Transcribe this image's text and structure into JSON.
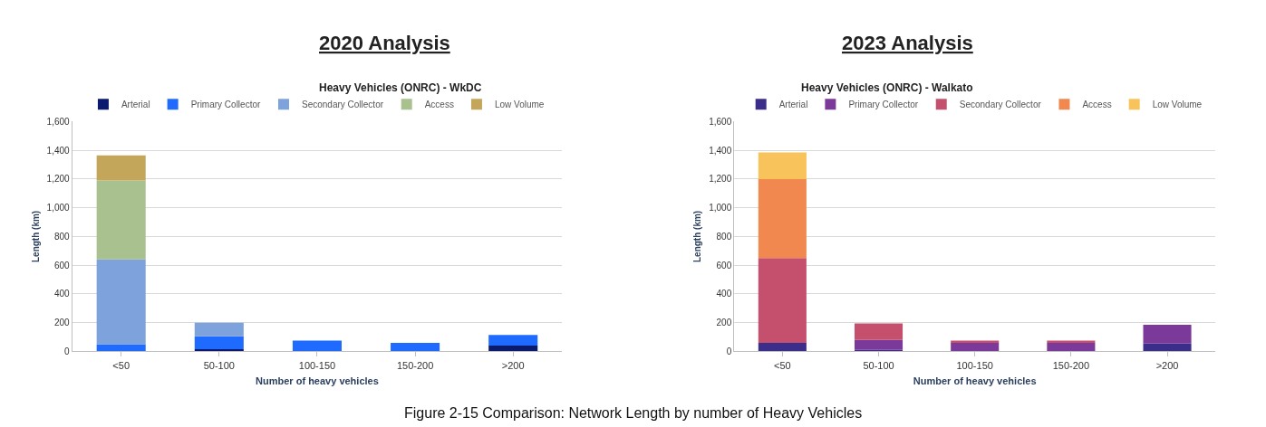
{
  "chart_data": [
    {
      "type": "bar",
      "title": "2020 Analysis",
      "subtitle": "Heavy Vehicles (ONRC) - WkDC",
      "xlabel": "Number of heavy vehicles",
      "ylabel": "Length (km)",
      "categories": [
        "<50",
        "50-100",
        "100-150",
        "150-200",
        ">200"
      ],
      "stacked": true,
      "series": [
        {
          "name": "Arterial",
          "color": "#0a1a6e",
          "values": [
            0,
            15,
            0,
            0,
            40
          ]
        },
        {
          "name": "Primary Collector",
          "color": "#1f6bff",
          "values": [
            50,
            90,
            75,
            60,
            75
          ]
        },
        {
          "name": "Secondary Collector",
          "color": "#7ea3dc",
          "values": [
            590,
            95,
            0,
            0,
            0
          ]
        },
        {
          "name": "Access",
          "color": "#a9c18f",
          "values": [
            550,
            0,
            0,
            0,
            0
          ]
        },
        {
          "name": "Low Volume",
          "color": "#c4a65a",
          "values": [
            175,
            0,
            0,
            0,
            0
          ]
        }
      ],
      "ylim": [
        0,
        1600
      ],
      "yticks": [
        0,
        200,
        400,
        600,
        800,
        {
          "value": 1000,
          "label": "1,000"
        },
        {
          "value": 1200,
          "label": "1,200"
        },
        {
          "value": 1400,
          "label": "1,400"
        },
        {
          "value": 1600,
          "label": "1,600"
        }
      ],
      "grid": "y",
      "legend": "top",
      "annotations": [
        "Figure 2-15 Comparison: Network Length by number of Heavy Vehicles"
      ]
    },
    {
      "type": "bar",
      "title": "2023 Analysis",
      "subtitle": "Heavy Vehicles (ONRC) - Walkato",
      "xlabel": "Number of heavy vehicles",
      "ylabel": "Length (km)",
      "categories": [
        "<50",
        "50-100",
        "100-150",
        "150-200",
        ">200"
      ],
      "stacked": true,
      "series": [
        {
          "name": "Arterial",
          "color": "#3b2d8a",
          "values": [
            60,
            10,
            0,
            0,
            55
          ]
        },
        {
          "name": "Primary Collector",
          "color": "#7b3a9a",
          "values": [
            0,
            70,
            60,
            60,
            130
          ]
        },
        {
          "name": "Secondary Collector",
          "color": "#c4506e",
          "values": [
            590,
            115,
            15,
            15,
            0
          ]
        },
        {
          "name": "Access",
          "color": "#f0884f",
          "values": [
            550,
            0,
            0,
            0,
            0
          ]
        },
        {
          "name": "Low Volume",
          "color": "#f8c35a",
          "values": [
            185,
            0,
            0,
            0,
            0
          ]
        }
      ],
      "ylim": [
        0,
        1600
      ],
      "yticks": [
        0,
        200,
        400,
        600,
        800,
        {
          "value": 1000,
          "label": "1,000"
        },
        {
          "value": 1200,
          "label": "1,200"
        },
        {
          "value": 1400,
          "label": "1,400"
        },
        {
          "value": 1600,
          "label": "1,600"
        }
      ],
      "grid": "y",
      "legend": "top"
    }
  ]
}
